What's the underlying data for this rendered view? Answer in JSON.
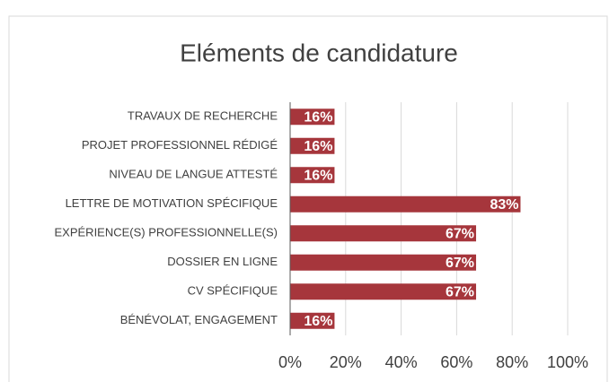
{
  "chart_data": {
    "type": "bar",
    "orientation": "horizontal",
    "title": "Eléments de candidature",
    "categories": [
      "TRAVAUX DE RECHERCHE",
      "PROJET PROFESSIONNEL RÉDIGÉ",
      "NIVEAU DE LANGUE ATTESTÉ",
      "LETTRE DE MOTIVATION SPÉCIFIQUE",
      "EXPÉRIENCE(S) PROFESSIONNELLE(S)",
      "DOSSIER EN LIGNE",
      "CV SPÉCIFIQUE",
      "BÉNÉVOLAT, ENGAGEMENT"
    ],
    "values": [
      16,
      16,
      16,
      83,
      67,
      67,
      67,
      16
    ],
    "value_labels": [
      "16%",
      "16%",
      "16%",
      "83%",
      "67%",
      "67%",
      "67%",
      "16%"
    ],
    "color": "#a6363c",
    "xlim": [
      0,
      100
    ],
    "xticks": [
      {
        "value": 0,
        "label": "0%"
      },
      {
        "value": 20,
        "label": "20%"
      },
      {
        "value": 40,
        "label": "40%"
      },
      {
        "value": 60,
        "label": "60%"
      },
      {
        "value": 80,
        "label": "80%"
      },
      {
        "value": 100,
        "label": "100%"
      }
    ],
    "grid": true
  }
}
